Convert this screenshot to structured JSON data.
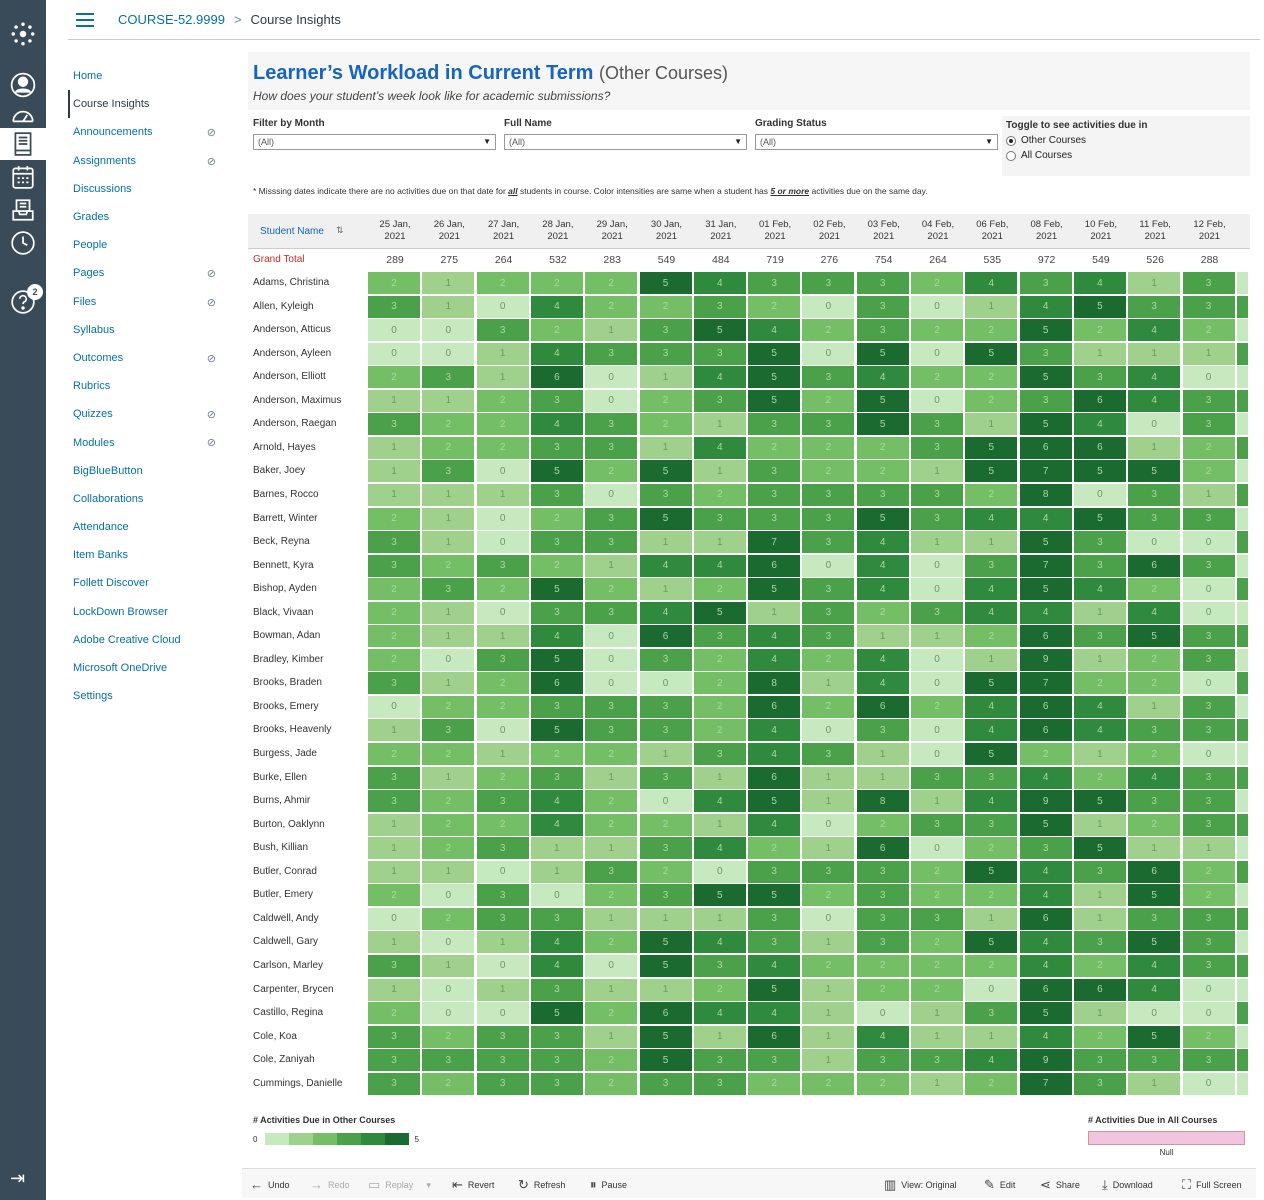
{
  "header": {
    "course_code": "COURSE-52.9999",
    "separator": ">",
    "current": "Course Insights"
  },
  "global_nav": {
    "help_badge": "2"
  },
  "course_nav": {
    "items": [
      {
        "label": "Home",
        "hidden": false
      },
      {
        "label": "Course Insights",
        "hidden": false,
        "active": true
      },
      {
        "label": "Announcements",
        "hidden": true
      },
      {
        "label": "Assignments",
        "hidden": true
      },
      {
        "label": "Discussions",
        "hidden": false
      },
      {
        "label": "Grades",
        "hidden": false
      },
      {
        "label": "People",
        "hidden": false
      },
      {
        "label": "Pages",
        "hidden": true
      },
      {
        "label": "Files",
        "hidden": true
      },
      {
        "label": "Syllabus",
        "hidden": false
      },
      {
        "label": "Outcomes",
        "hidden": true
      },
      {
        "label": "Rubrics",
        "hidden": false
      },
      {
        "label": "Quizzes",
        "hidden": true
      },
      {
        "label": "Modules",
        "hidden": true
      },
      {
        "label": "BigBlueButton",
        "hidden": false
      },
      {
        "label": "Collaborations",
        "hidden": false
      },
      {
        "label": "Attendance",
        "hidden": false
      },
      {
        "label": "Item Banks",
        "hidden": false
      },
      {
        "label": "Follett Discover",
        "hidden": false
      },
      {
        "label": "LockDown Browser",
        "hidden": false
      },
      {
        "label": "Adobe Creative Cloud",
        "hidden": false
      },
      {
        "label": "Microsoft OneDrive",
        "hidden": false
      },
      {
        "label": "Settings",
        "hidden": false
      }
    ]
  },
  "dashboard": {
    "title": "Learner’s Workload in Current Term",
    "title_suffix": "(Other Courses)",
    "subtitle": "How does your student’s week look like for academic submissions?",
    "filters": [
      {
        "label": "Filter by Month",
        "value": "(All)"
      },
      {
        "label": "Full Name",
        "value": "(All)"
      },
      {
        "label": "Grading Status",
        "value": "(All)"
      }
    ],
    "toggle": {
      "title": "Toggle to see activities due in",
      "options": [
        "Other Courses",
        "All Courses"
      ],
      "selected": "Other Courses"
    },
    "note_a": "* Misssing dates indicate there are no activities due on that date for ",
    "note_b": "all",
    "note_c": " students in course. Color intensities are same when a student has ",
    "note_d": "5 or more",
    "note_e": " activities due on the same day.",
    "column_header": "Student Name",
    "grand_total_label": "Grand Total",
    "dates": [
      "25 Jan, 2021",
      "26 Jan, 2021",
      "27 Jan, 2021",
      "28 Jan, 2021",
      "29 Jan, 2021",
      "30 Jan, 2021",
      "31 Jan, 2021",
      "01 Feb, 2021",
      "02 Feb, 2021",
      "03 Feb, 2021",
      "04 Feb, 2021",
      "06 Feb, 2021",
      "08 Feb, 2021",
      "10 Feb, 2021",
      "11 Feb, 2021",
      "12 Feb, 2021"
    ],
    "grand_totals": [
      289,
      275,
      264,
      532,
      283,
      549,
      484,
      719,
      276,
      754,
      264,
      535,
      972,
      549,
      526,
      288
    ],
    "students": [
      {
        "name": "Adams, Christina",
        "v": [
          2,
          1,
          2,
          2,
          2,
          5,
          4,
          3,
          3,
          3,
          2,
          4,
          3,
          4,
          1,
          3
        ]
      },
      {
        "name": "Allen, Kyleigh",
        "v": [
          3,
          1,
          0,
          4,
          2,
          2,
          3,
          2,
          0,
          3,
          0,
          1,
          4,
          5,
          3,
          3
        ]
      },
      {
        "name": "Anderson, Atticus",
        "v": [
          0,
          0,
          3,
          2,
          1,
          3,
          5,
          4,
          2,
          3,
          2,
          2,
          5,
          2,
          4,
          2
        ]
      },
      {
        "name": "Anderson, Ayleen",
        "v": [
          0,
          0,
          1,
          4,
          3,
          3,
          3,
          5,
          0,
          5,
          0,
          5,
          3,
          1,
          1,
          1
        ]
      },
      {
        "name": "Anderson, Elliott",
        "v": [
          2,
          3,
          1,
          6,
          0,
          1,
          4,
          5,
          3,
          4,
          2,
          2,
          5,
          3,
          4,
          0
        ]
      },
      {
        "name": "Anderson, Maximus",
        "v": [
          1,
          1,
          2,
          3,
          0,
          2,
          3,
          5,
          2,
          5,
          0,
          2,
          3,
          6,
          4,
          3
        ]
      },
      {
        "name": "Anderson, Raegan",
        "v": [
          3,
          2,
          2,
          4,
          3,
          2,
          1,
          3,
          3,
          5,
          3,
          1,
          5,
          4,
          0,
          3
        ]
      },
      {
        "name": "Arnold, Hayes",
        "v": [
          1,
          2,
          2,
          3,
          3,
          1,
          4,
          2,
          2,
          2,
          3,
          5,
          6,
          6,
          1,
          2
        ]
      },
      {
        "name": "Baker, Joey",
        "v": [
          1,
          3,
          0,
          5,
          2,
          5,
          1,
          3,
          2,
          2,
          1,
          5,
          7,
          5,
          5,
          2
        ]
      },
      {
        "name": "Barnes, Rocco",
        "v": [
          1,
          1,
          1,
          3,
          0,
          3,
          2,
          3,
          3,
          3,
          3,
          2,
          8,
          0,
          3,
          1
        ]
      },
      {
        "name": "Barrett, Winter",
        "v": [
          2,
          1,
          0,
          2,
          3,
          5,
          3,
          3,
          3,
          5,
          3,
          4,
          4,
          5,
          3,
          3
        ]
      },
      {
        "name": "Beck, Reyna",
        "v": [
          3,
          1,
          0,
          3,
          3,
          1,
          1,
          7,
          3,
          4,
          1,
          1,
          5,
          3,
          0,
          0
        ]
      },
      {
        "name": "Bennett, Kyra",
        "v": [
          3,
          2,
          3,
          2,
          1,
          4,
          4,
          6,
          0,
          4,
          0,
          3,
          7,
          3,
          6,
          3
        ]
      },
      {
        "name": "Bishop, Ayden",
        "v": [
          2,
          3,
          2,
          5,
          2,
          1,
          2,
          5,
          3,
          4,
          0,
          4,
          5,
          4,
          2,
          0
        ]
      },
      {
        "name": "Black, Vivaan",
        "v": [
          2,
          1,
          0,
          3,
          3,
          4,
          5,
          1,
          3,
          2,
          3,
          4,
          4,
          1,
          4,
          0
        ]
      },
      {
        "name": "Bowman, Adan",
        "v": [
          2,
          1,
          1,
          4,
          0,
          6,
          3,
          4,
          3,
          1,
          1,
          2,
          6,
          3,
          5,
          3
        ]
      },
      {
        "name": "Bradley, Kimber",
        "v": [
          2,
          0,
          3,
          5,
          0,
          3,
          2,
          4,
          2,
          4,
          0,
          1,
          9,
          1,
          2,
          3
        ]
      },
      {
        "name": "Brooks, Braden",
        "v": [
          3,
          1,
          2,
          6,
          0,
          0,
          2,
          8,
          1,
          4,
          0,
          5,
          7,
          2,
          2,
          0
        ]
      },
      {
        "name": "Brooks, Emery",
        "v": [
          0,
          2,
          2,
          3,
          3,
          3,
          2,
          6,
          2,
          6,
          2,
          4,
          6,
          4,
          1,
          3
        ]
      },
      {
        "name": "Brooks, Heavenly",
        "v": [
          1,
          3,
          0,
          5,
          3,
          3,
          2,
          4,
          0,
          3,
          0,
          4,
          6,
          4,
          3,
          3
        ]
      },
      {
        "name": "Burgess, Jade",
        "v": [
          2,
          2,
          1,
          2,
          2,
          1,
          3,
          4,
          3,
          1,
          0,
          5,
          2,
          1,
          2,
          0
        ]
      },
      {
        "name": "Burke, Ellen",
        "v": [
          3,
          1,
          2,
          3,
          1,
          3,
          1,
          6,
          1,
          1,
          3,
          3,
          4,
          2,
          4,
          3
        ]
      },
      {
        "name": "Burns, Ahmir",
        "v": [
          3,
          2,
          3,
          4,
          2,
          0,
          4,
          5,
          1,
          8,
          1,
          4,
          9,
          5,
          3,
          3
        ]
      },
      {
        "name": "Burton, Oaklynn",
        "v": [
          1,
          2,
          2,
          4,
          2,
          2,
          1,
          4,
          0,
          2,
          3,
          3,
          5,
          1,
          2,
          3
        ]
      },
      {
        "name": "Bush, Killian",
        "v": [
          1,
          2,
          3,
          1,
          1,
          3,
          4,
          2,
          1,
          6,
          0,
          2,
          3,
          5,
          1,
          1
        ]
      },
      {
        "name": "Butler, Conrad",
        "v": [
          1,
          1,
          0,
          1,
          3,
          2,
          0,
          3,
          3,
          3,
          2,
          5,
          4,
          3,
          6,
          2
        ]
      },
      {
        "name": "Butler, Emery",
        "v": [
          2,
          0,
          3,
          0,
          2,
          3,
          5,
          5,
          2,
          3,
          2,
          2,
          4,
          1,
          5,
          2
        ]
      },
      {
        "name": "Caldwell, Andy",
        "v": [
          0,
          2,
          3,
          3,
          1,
          1,
          1,
          3,
          0,
          3,
          3,
          1,
          6,
          1,
          3,
          3
        ]
      },
      {
        "name": "Caldwell, Gary",
        "v": [
          1,
          0,
          1,
          4,
          2,
          5,
          4,
          3,
          1,
          3,
          2,
          5,
          4,
          3,
          5,
          3
        ]
      },
      {
        "name": "Carlson, Marley",
        "v": [
          3,
          1,
          0,
          4,
          0,
          5,
          3,
          4,
          2,
          2,
          2,
          2,
          4,
          2,
          4,
          3
        ]
      },
      {
        "name": "Carpenter, Brycen",
        "v": [
          1,
          0,
          1,
          3,
          1,
          1,
          2,
          5,
          1,
          2,
          2,
          0,
          6,
          6,
          4,
          0
        ]
      },
      {
        "name": "Castillo, Regina",
        "v": [
          2,
          0,
          0,
          5,
          2,
          6,
          4,
          4,
          1,
          0,
          1,
          3,
          5,
          1,
          0,
          0
        ]
      },
      {
        "name": "Cole, Koa",
        "v": [
          3,
          2,
          3,
          3,
          1,
          5,
          1,
          6,
          1,
          4,
          1,
          1,
          4,
          2,
          5,
          2
        ]
      },
      {
        "name": "Cole, Zaniyah",
        "v": [
          3,
          3,
          3,
          3,
          2,
          5,
          3,
          3,
          1,
          3,
          3,
          4,
          9,
          3,
          3,
          3
        ]
      },
      {
        "name": "Cummings, Danielle",
        "v": [
          3,
          2,
          3,
          3,
          2,
          3,
          3,
          2,
          2,
          2,
          1,
          2,
          7,
          3,
          1,
          0
        ]
      }
    ],
    "legend_other": {
      "title": "# Activities Due in Other Courses",
      "min": "0",
      "max": "5"
    },
    "legend_all": {
      "title": "# Activities Due in All Courses",
      "null_label": "Null"
    },
    "colors": {
      "ramp": [
        "#c7e9c0",
        "#9fd08c",
        "#74bf66",
        "#4aa14a",
        "#2f8a3e",
        "#1b6b30"
      ],
      "title": "#1565c0",
      "pink": "#f2c4e0"
    }
  },
  "toolbar": {
    "undo": "Undo",
    "redo": "Redo",
    "replay": "Replay",
    "revert": "Revert",
    "refresh": "Refresh",
    "pause": "Pause",
    "view": "View: Original",
    "edit": "Edit",
    "share": "Share",
    "download": "Download",
    "fullscreen": "Full Screen"
  }
}
